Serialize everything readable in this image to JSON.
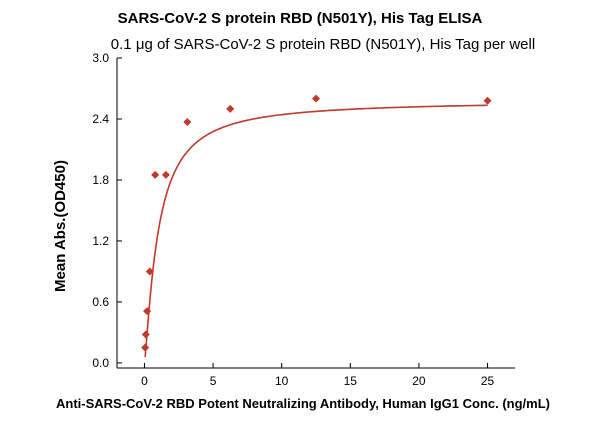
{
  "chart_data": {
    "type": "scatter",
    "title": "SARS-CoV-2 S protein RBD (N501Y), His Tag ELISA",
    "subtitle": "0.1 μg of SARS-CoV-2 S protein RBD (N501Y), His Tag per well",
    "xlabel": "Anti-SARS-CoV-2 RBD Potent Neutralizing Antibody, Human IgG1 Conc. (ng/mL)",
    "ylabel": "Mean Abs.(OD450)",
    "xlim": [
      -2,
      27
    ],
    "ylim": [
      -0.05,
      3.0
    ],
    "x_ticks": [
      0,
      5,
      10,
      15,
      20,
      25
    ],
    "x_tick_labels": [
      "0",
      "5",
      "10",
      "15",
      "20",
      "25"
    ],
    "y_ticks": [
      0.0,
      0.6,
      1.2,
      1.8,
      2.4,
      3.0
    ],
    "y_tick_labels": [
      "0.0",
      "0.6",
      "1.2",
      "1.8",
      "2.4",
      "3.0"
    ],
    "grid": false,
    "legend": "none",
    "series": [
      {
        "color": "#c0392b",
        "marker": "diamond",
        "fit": "four-parameter logistic",
        "x": [
          0.049,
          0.098,
          0.195,
          0.391,
          0.781,
          1.563,
          3.125,
          6.25,
          12.5,
          25
        ],
        "y": [
          0.15,
          0.28,
          0.51,
          0.9,
          1.85,
          1.85,
          2.37,
          2.5,
          2.6,
          2.58
        ]
      }
    ]
  }
}
